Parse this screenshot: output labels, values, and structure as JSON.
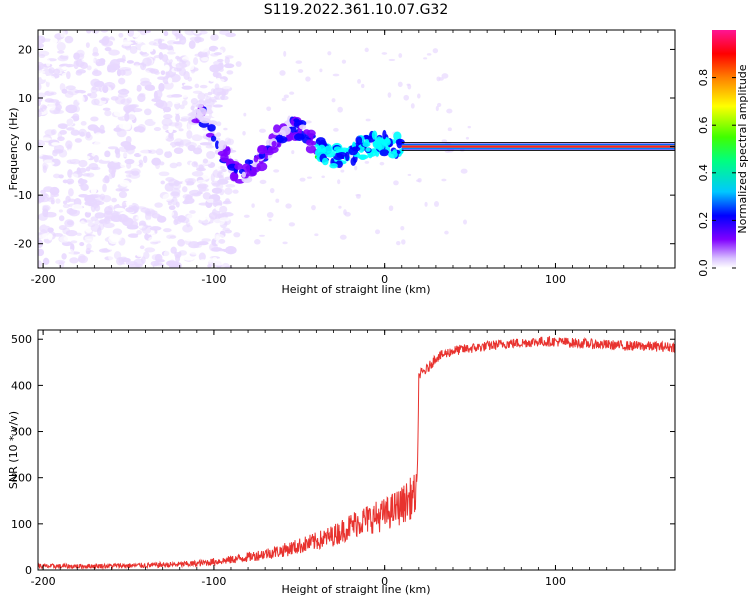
{
  "title": "S119.2022.361.10.07.G32",
  "chart_data": [
    {
      "type": "heatmap",
      "xlabel": "Height of straight line (km)",
      "ylabel": "Frequency (Hz)",
      "xlim": [
        -203,
        170
      ],
      "ylim": [
        -25,
        24
      ],
      "xticks": [
        -200,
        -100,
        0,
        100
      ],
      "yticks": [
        20,
        10,
        0,
        -10,
        -20
      ],
      "colorbar": {
        "label": "Normalized spectral amplitude",
        "range": [
          0.0,
          1.0
        ],
        "ticks": [
          "0.0",
          "0.2",
          "0.4",
          "0.6",
          "0.8"
        ],
        "tick_values": [
          0.0,
          0.2,
          0.4,
          0.6,
          0.8
        ],
        "colormap": [
          "#ffffff",
          "#e8d8ff",
          "#7f00ff",
          "#0000ff",
          "#00ffff",
          "#00ff00",
          "#ffff00",
          "#ff0000",
          "#ff1493"
        ]
      },
      "carrier_frequency_hz": 0,
      "oscillation_region_km": [
        -110,
        10
      ],
      "noise_region_km": [
        -203,
        -100
      ]
    },
    {
      "type": "line",
      "xlabel": "Height of straight line (km)",
      "ylabel": "SNR (10 * v/v)",
      "xlim": [
        -203,
        170
      ],
      "ylim": [
        0,
        520
      ],
      "xticks": [
        -200,
        -100,
        0,
        100
      ],
      "yticks": [
        0,
        100,
        200,
        300,
        400,
        500
      ],
      "color": "#e8322e",
      "series": [
        {
          "x": [
            -203,
            -180,
            -160,
            -140,
            -120,
            -110,
            -100,
            -90,
            -80,
            -70,
            -60,
            -50,
            -40,
            -30,
            -25,
            -20,
            -15,
            -10,
            -5,
            0,
            5,
            10,
            15,
            19,
            20,
            21,
            25,
            30,
            40,
            50,
            60,
            70,
            80,
            90,
            100,
            110,
            120,
            130,
            140,
            150,
            160,
            170
          ],
          "values": [
            8,
            8,
            9,
            10,
            12,
            14,
            18,
            22,
            28,
            35,
            42,
            52,
            62,
            75,
            85,
            95,
            105,
            110,
            115,
            120,
            130,
            140,
            155,
            165,
            420,
            425,
            435,
            460,
            475,
            480,
            485,
            490,
            492,
            495,
            495,
            492,
            490,
            488,
            486,
            485,
            484,
            483
          ]
        }
      ]
    }
  ]
}
